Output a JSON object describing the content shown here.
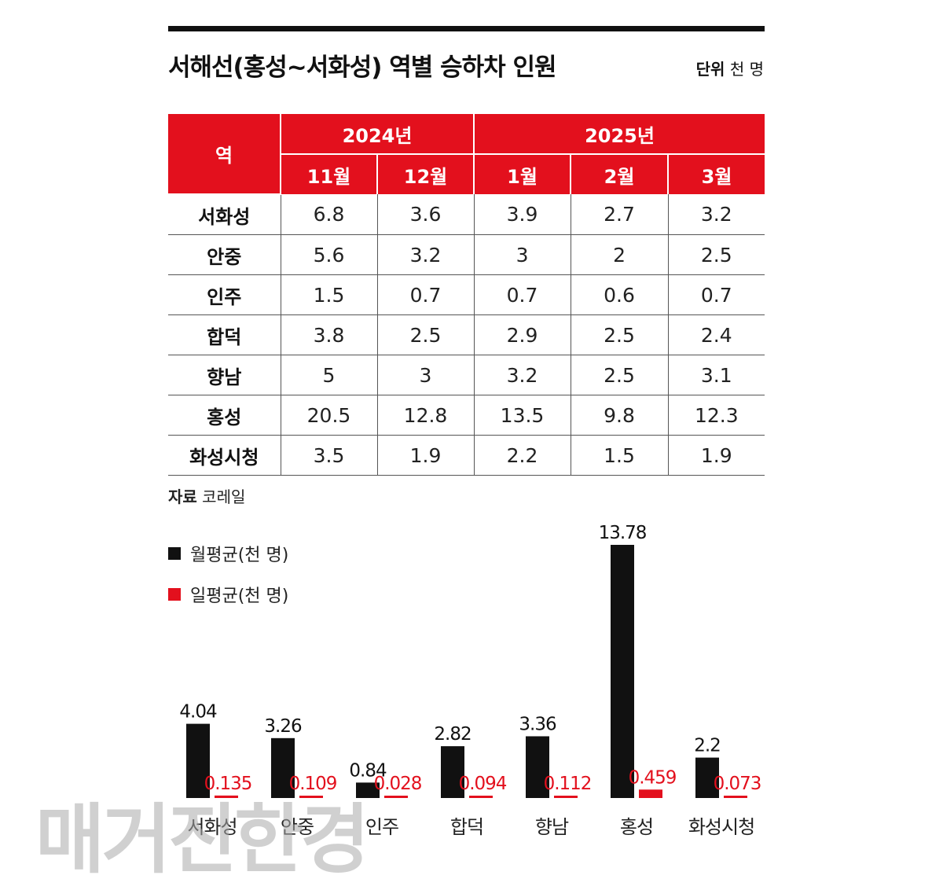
{
  "title": "서해선(홍성~서화성) 역별 승하차 인원",
  "unit": {
    "label": "단위",
    "value": "천 명"
  },
  "table": {
    "station_header": "역",
    "years": [
      {
        "label": "2024년",
        "span": 2
      },
      {
        "label": "2025년",
        "span": 3
      }
    ],
    "months": [
      "11월",
      "12월",
      "1월",
      "2월",
      "3월"
    ],
    "rows": [
      {
        "station": "서화성",
        "values": [
          "6.8",
          "3.6",
          "3.9",
          "2.7",
          "3.2"
        ]
      },
      {
        "station": "안중",
        "values": [
          "5.6",
          "3.2",
          "3",
          "2",
          "2.5"
        ]
      },
      {
        "station": "인주",
        "values": [
          "1.5",
          "0.7",
          "0.7",
          "0.6",
          "0.7"
        ]
      },
      {
        "station": "합덕",
        "values": [
          "3.8",
          "2.5",
          "2.9",
          "2.5",
          "2.4"
        ]
      },
      {
        "station": "향남",
        "values": [
          "5",
          "3",
          "3.2",
          "2.5",
          "3.1"
        ]
      },
      {
        "station": "홍성",
        "values": [
          "20.5",
          "12.8",
          "13.5",
          "9.8",
          "12.3"
        ]
      },
      {
        "station": "화성시청",
        "values": [
          "3.5",
          "1.9",
          "2.2",
          "1.5",
          "1.9"
        ]
      }
    ]
  },
  "source": {
    "label": "자료",
    "value": "코레일"
  },
  "legend": [
    {
      "label": "월평균(천 명)",
      "color": "#111111"
    },
    {
      "label": "일평균(천 명)",
      "color": "#e3101d"
    }
  ],
  "chart_data": {
    "type": "bar",
    "categories": [
      "서화성",
      "안중",
      "인주",
      "합덕",
      "향남",
      "홍성",
      "화성시청"
    ],
    "series": [
      {
        "name": "월평균(천 명)",
        "color": "#111111",
        "values": [
          4.04,
          3.26,
          0.84,
          2.82,
          3.36,
          13.78,
          2.2
        ],
        "labels": [
          "4.04",
          "3.26",
          "0.84",
          "2.82",
          "3.36",
          "13.78",
          "2.2"
        ]
      },
      {
        "name": "일평균(천 명)",
        "color": "#e3101d",
        "values": [
          0.135,
          0.109,
          0.028,
          0.094,
          0.112,
          0.459,
          0.073
        ],
        "labels": [
          "0.135",
          "0.109",
          "0.028",
          "0.094",
          "0.112",
          "0.459",
          "0.073"
        ]
      }
    ],
    "ylim": [
      0,
      13.78
    ],
    "grid": false,
    "legend_position": "top-left"
  },
  "watermark": "매거진한경"
}
